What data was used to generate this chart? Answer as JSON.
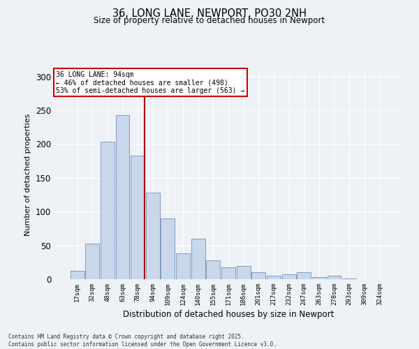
{
  "title1": "36, LONG LANE, NEWPORT, PO30 2NH",
  "title2": "Size of property relative to detached houses in Newport",
  "xlabel": "Distribution of detached houses by size in Newport",
  "ylabel": "Number of detached properties",
  "annotation_title": "36 LONG LANE: 94sqm",
  "annotation_line1": "← 46% of detached houses are smaller (498)",
  "annotation_line2": "53% of semi-detached houses are larger (563) →",
  "footer1": "Contains HM Land Registry data © Crown copyright and database right 2025.",
  "footer2": "Contains public sector information licensed under the Open Government Licence v3.0.",
  "bar_labels": [
    "17sqm",
    "32sqm",
    "48sqm",
    "63sqm",
    "78sqm",
    "94sqm",
    "109sqm",
    "124sqm",
    "140sqm",
    "155sqm",
    "171sqm",
    "186sqm",
    "201sqm",
    "217sqm",
    "232sqm",
    "247sqm",
    "263sqm",
    "278sqm",
    "293sqm",
    "309sqm",
    "324sqm"
  ],
  "bar_values": [
    12,
    53,
    204,
    243,
    183,
    128,
    90,
    38,
    60,
    28,
    18,
    20,
    10,
    5,
    7,
    10,
    3,
    5,
    1,
    0,
    0
  ],
  "bar_color": "#c8d8ea",
  "bar_edge_color": "#7090b8",
  "vline_idx": 4,
  "vline_color": "#aa0000",
  "ylim": [
    0,
    310
  ],
  "yticks": [
    0,
    50,
    100,
    150,
    200,
    250,
    300
  ],
  "bg_color": "#eef2f6",
  "grid_color": "#ffffff",
  "annotation_box_color": "#ffffff",
  "annotation_box_edge": "#cc0000"
}
